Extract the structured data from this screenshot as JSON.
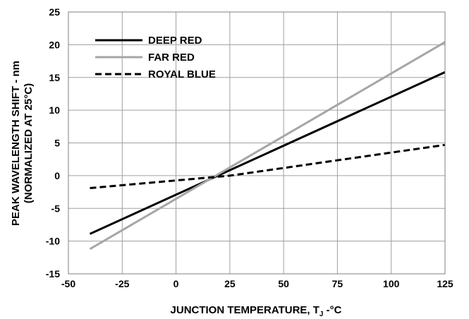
{
  "chart_data": {
    "type": "line",
    "title": "",
    "xlabel": "JUNCTION TEMPERATURE, T",
    "xlabel_sub": "J",
    "xlabel_suffix": " -°C",
    "ylabel": "PEAK WAVELENGTH SHIFT - nm",
    "ylabel2": "(NORMALIZED AT 25°C)",
    "xlim": [
      -50,
      125
    ],
    "ylim": [
      -15,
      25
    ],
    "x_ticks": [
      -50,
      -25,
      0,
      25,
      50,
      75,
      100,
      125
    ],
    "y_ticks": [
      -15,
      -10,
      -5,
      0,
      5,
      10,
      15,
      20,
      25
    ],
    "grid": true,
    "legend_position": "top-left",
    "series": [
      {
        "name": "DEEP RED",
        "color": "#000000",
        "style": "solid",
        "x": [
          -40,
          125
        ],
        "y": [
          -8.9,
          15.8
        ]
      },
      {
        "name": "FAR RED",
        "color": "#a6a6a6",
        "style": "solid",
        "x": [
          -40,
          125
        ],
        "y": [
          -11.2,
          20.4
        ]
      },
      {
        "name": "ROYAL BLUE",
        "color": "#000000",
        "style": "dashed",
        "x": [
          -40,
          25,
          125
        ],
        "y": [
          -1.9,
          0,
          4.7
        ]
      }
    ]
  }
}
